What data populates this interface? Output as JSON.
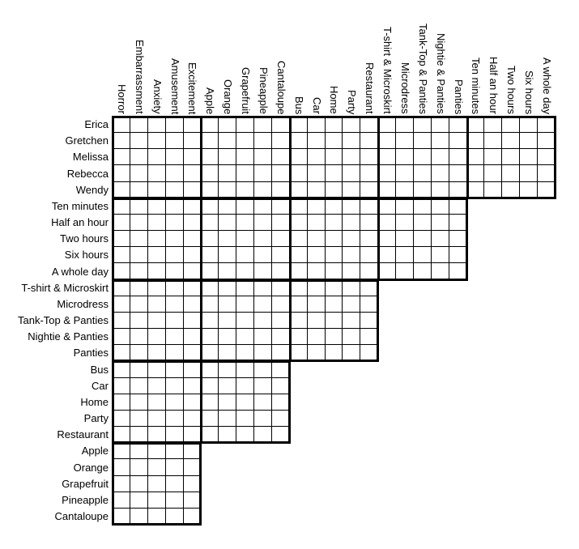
{
  "logic_puzzle_grid": {
    "style": {
      "grid_line_color": "#000000",
      "background_color": "#ffffff",
      "text_color": "#000000"
    },
    "column_groups": [
      {
        "name": "emotions",
        "labels": [
          "Horror",
          "Embarrassment",
          "Anxiety",
          "Amusement",
          "Excitement"
        ]
      },
      {
        "name": "fruits",
        "labels": [
          "Apple",
          "Orange",
          "Grapefruit",
          "Pineapple",
          "Cantaloupe"
        ]
      },
      {
        "name": "locations",
        "labels": [
          "Bus",
          "Car",
          "Home",
          "Party",
          "Restaurant"
        ]
      },
      {
        "name": "clothes",
        "labels": [
          "T-shirt & Microskirt",
          "Microdress",
          "Tank-Top & Panties",
          "Nightie & Panties",
          "Panties"
        ]
      },
      {
        "name": "times",
        "labels": [
          "Ten minutes",
          "Half an hour",
          "Two hours",
          "Six hours",
          "A whole day"
        ]
      }
    ],
    "row_groups": [
      {
        "name": "names",
        "labels": [
          "Erica",
          "Gretchen",
          "Melissa",
          "Rebecca",
          "Wendy"
        ],
        "column_group_span": 5
      },
      {
        "name": "times",
        "labels": [
          "Ten minutes",
          "Half an hour",
          "Two hours",
          "Six hours",
          "A whole day"
        ],
        "column_group_span": 4
      },
      {
        "name": "clothes",
        "labels": [
          "T-shirt & Microskirt",
          "Microdress",
          "Tank-Top & Panties",
          "Nightie & Panties",
          "Panties"
        ],
        "column_group_span": 3
      },
      {
        "name": "locations",
        "labels": [
          "Bus",
          "Car",
          "Home",
          "Party",
          "Restaurant"
        ],
        "column_group_span": 2
      },
      {
        "name": "fruits",
        "labels": [
          "Apple",
          "Orange",
          "Grapefruit",
          "Pineapple",
          "Cantaloupe"
        ],
        "column_group_span": 1
      }
    ],
    "cells": {
      "all_empty": true,
      "group_size": 5
    }
  }
}
